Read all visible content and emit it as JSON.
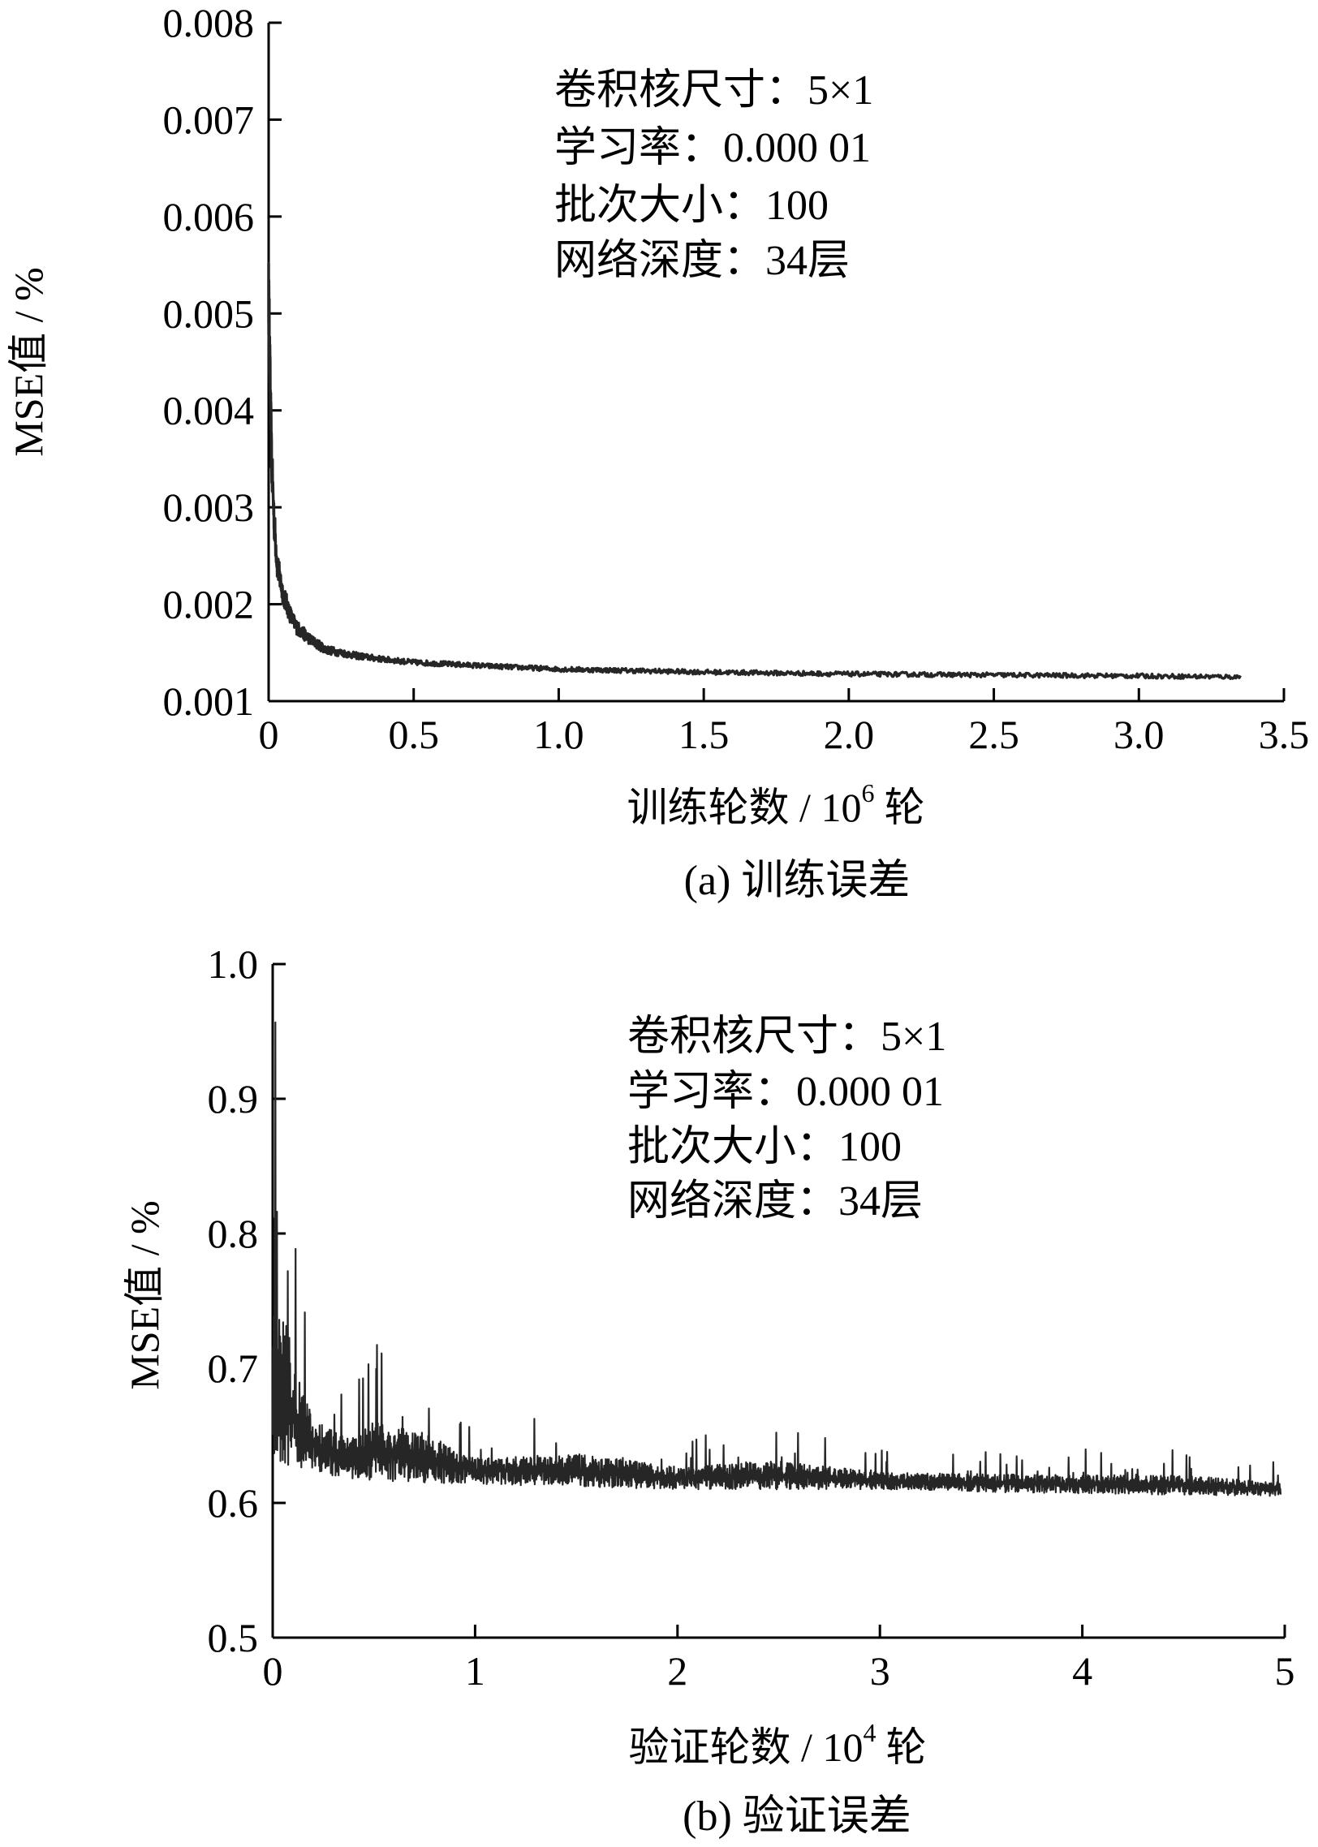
{
  "chart_data": [
    {
      "type": "line",
      "caption": "(a)  训练误差",
      "xlabel": "训练轮数 / 10",
      "xlabel_sup": "6",
      "xlabel_unit": "轮",
      "ylabel": "MSE值 / %",
      "xlim": [
        0,
        3.5
      ],
      "ylim": [
        0.001,
        0.008
      ],
      "x_ticks": [
        0,
        0.5,
        1.0,
        1.5,
        2.0,
        2.5,
        3.0,
        3.5
      ],
      "x_tick_labels": [
        "0",
        "0.5",
        "1.0",
        "1.5",
        "2.0",
        "2.5",
        "3.0",
        "3.5"
      ],
      "y_ticks": [
        0.001,
        0.002,
        0.003,
        0.004,
        0.005,
        0.006,
        0.007,
        0.008
      ],
      "y_tick_labels": [
        "0.001",
        "0.002",
        "0.003",
        "0.004",
        "0.005",
        "0.006",
        "0.007",
        "0.008"
      ],
      "annotations": [
        "卷积核尺寸：5×1",
        "学习率：0.000 01",
        "批次大小：100",
        "网络深度：34层"
      ],
      "series": [
        {
          "color": "#262626",
          "x": [
            0,
            0.005,
            0.01,
            0.02,
            0.03,
            0.05,
            0.08,
            0.1,
            0.15,
            0.2,
            0.3,
            0.4,
            0.5,
            0.7,
            1.0,
            1.5,
            2.0,
            2.5,
            3.0,
            3.35
          ],
          "y": [
            0.0052,
            0.0043,
            0.0035,
            0.0028,
            0.0024,
            0.0021,
            0.00185,
            0.00175,
            0.00162,
            0.00153,
            0.00147,
            0.00143,
            0.0014,
            0.00137,
            0.00133,
            0.0013,
            0.00128,
            0.00127,
            0.00126,
            0.00125
          ]
        }
      ]
    },
    {
      "type": "line",
      "caption": "(b)  验证误差",
      "xlabel": "验证轮数 / 10",
      "xlabel_sup": "4",
      "xlabel_unit": "轮",
      "ylabel": "MSE值 / %",
      "xlim": [
        0,
        5
      ],
      "ylim": [
        0.5,
        1.0
      ],
      "x_ticks": [
        0,
        1,
        2,
        3,
        4,
        5
      ],
      "x_tick_labels": [
        "0",
        "1",
        "2",
        "3",
        "4",
        "5"
      ],
      "y_ticks": [
        0.5,
        0.6,
        0.7,
        0.8,
        0.9,
        1.0
      ],
      "y_tick_labels": [
        "0.5",
        "0.6",
        "0.7",
        "0.8",
        "0.9",
        "1.0"
      ],
      "annotations": [
        "卷积核尺寸：5×1",
        "学习率：0.000 01",
        "批次大小：100",
        "网络深度：34层"
      ],
      "series": [
        {
          "color": "#262626",
          "x": [
            0,
            0.02,
            0.05,
            0.08,
            0.1,
            0.15,
            0.2,
            0.3,
            0.4,
            0.5,
            0.7,
            1.0,
            1.5,
            2.0,
            2.5,
            3.0,
            3.5,
            4.0,
            4.5,
            4.98
          ],
          "y_upper": [
            0.99,
            0.95,
            0.89,
            0.86,
            0.82,
            0.76,
            0.72,
            0.7,
            0.69,
            0.72,
            0.71,
            0.66,
            0.67,
            0.65,
            0.66,
            0.64,
            0.64,
            0.64,
            0.64,
            0.63
          ],
          "y_lower": [
            0.63,
            0.63,
            0.63,
            0.628,
            0.627,
            0.625,
            0.622,
            0.62,
            0.618,
            0.617,
            0.615,
            0.614,
            0.612,
            0.61,
            0.61,
            0.61,
            0.608,
            0.607,
            0.606,
            0.605
          ]
        }
      ]
    }
  ]
}
